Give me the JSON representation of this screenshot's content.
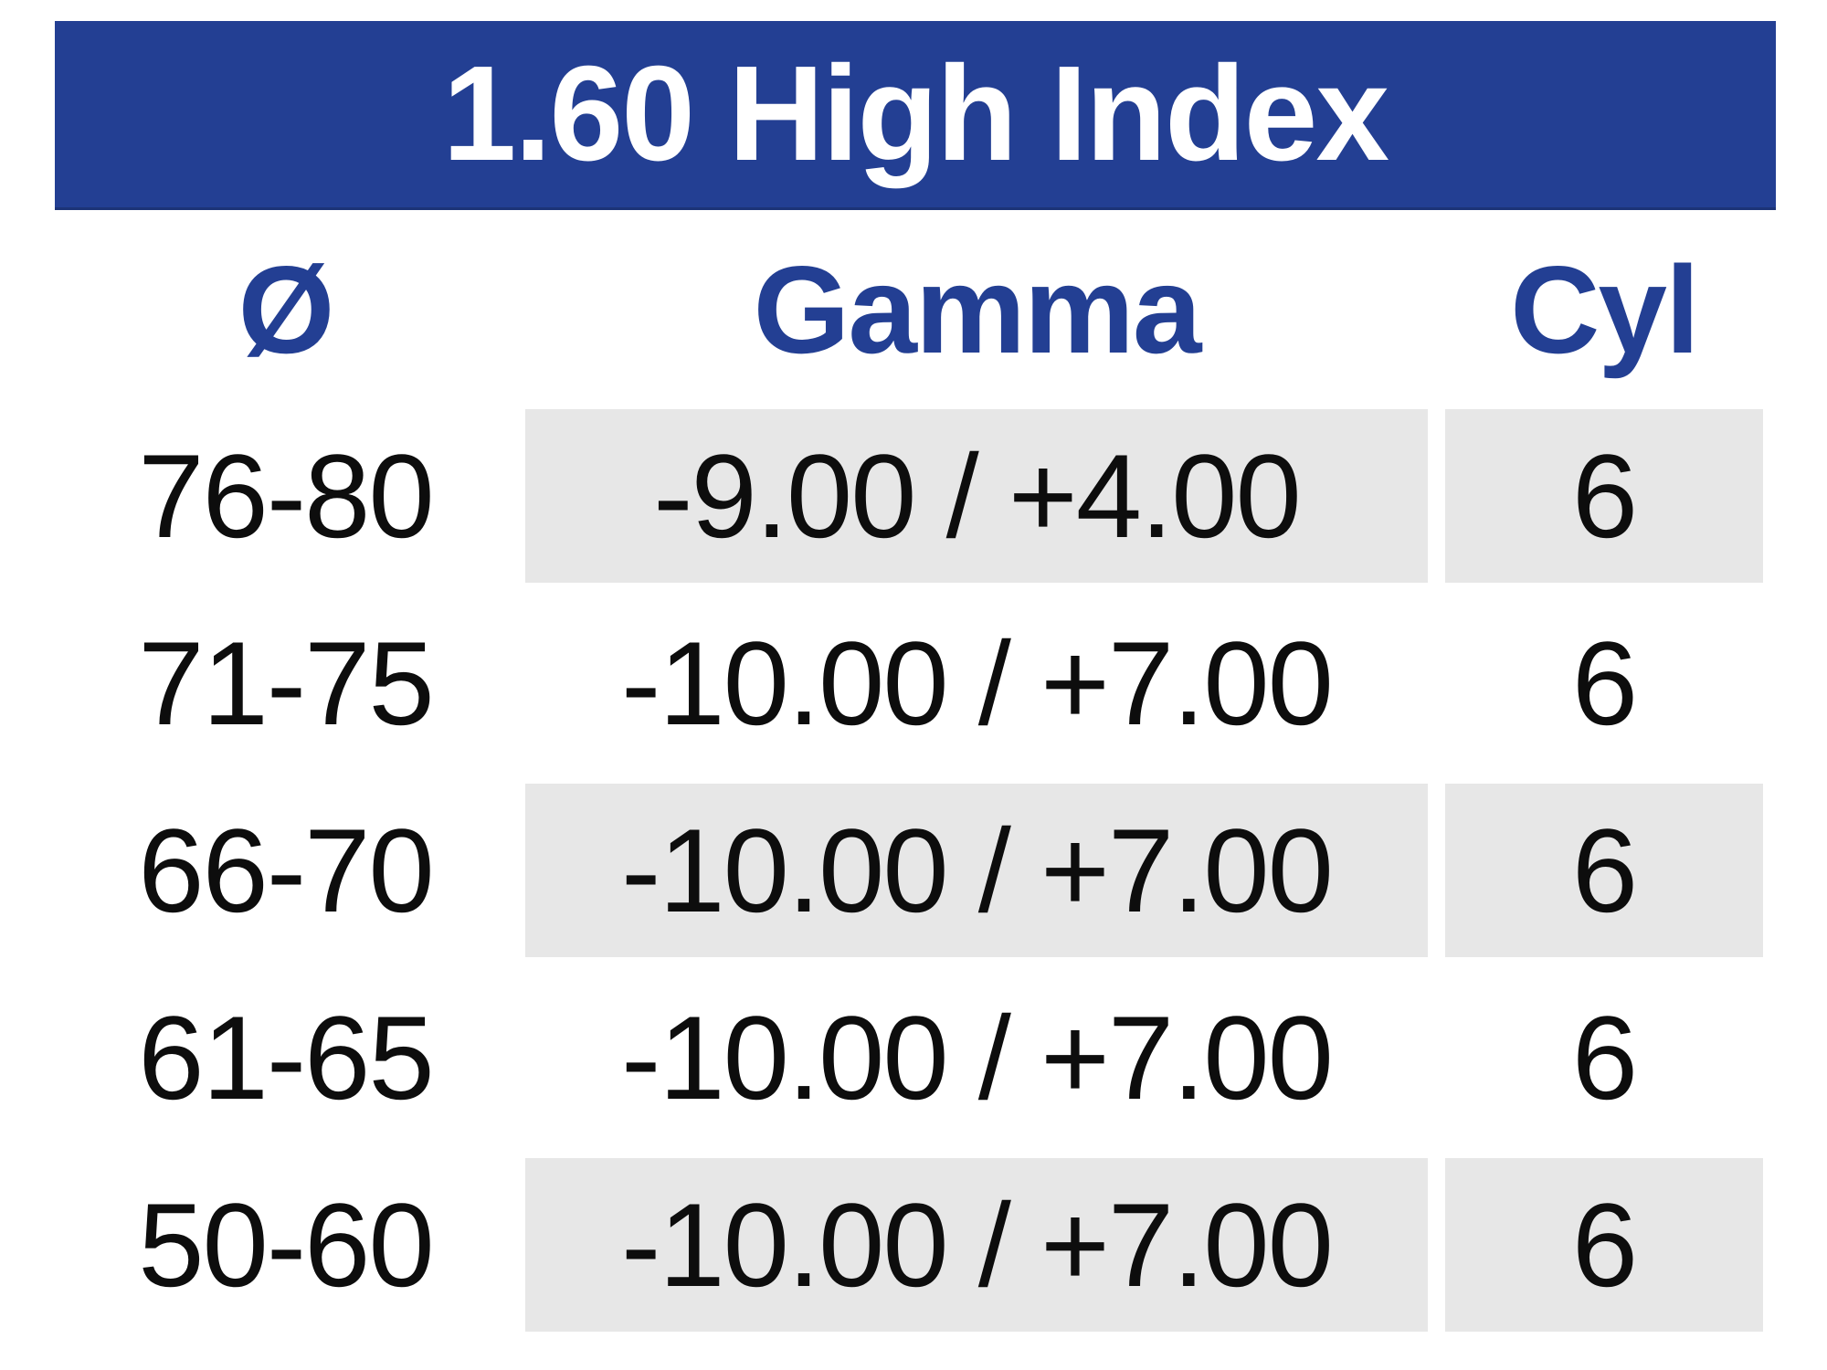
{
  "table": {
    "title": "1.60 High Index",
    "columns": [
      {
        "key": "diameter",
        "label": "Ø"
      },
      {
        "key": "gamma",
        "label": "Gamma"
      },
      {
        "key": "cyl",
        "label": "Cyl"
      }
    ],
    "rows": [
      {
        "diameter": "76-80",
        "gamma": "-9.00 / +4.00",
        "cyl": "6",
        "shaded": true
      },
      {
        "diameter": "71-75",
        "gamma": "-10.00 / +7.00",
        "cyl": "6",
        "shaded": false
      },
      {
        "diameter": "66-70",
        "gamma": "-10.00 / +7.00",
        "cyl": "6",
        "shaded": true
      },
      {
        "diameter": "61-65",
        "gamma": "-10.00 / +7.00",
        "cyl": "6",
        "shaded": false
      },
      {
        "diameter": "50-60",
        "gamma": "-10.00 / +7.00",
        "cyl": "6",
        "shaded": true
      }
    ],
    "colors": {
      "banner_blue": "#233f93",
      "header_text_blue": "#233f93",
      "row_shade_gray": "#e7e7e7",
      "title_text": "#ffffff",
      "data_text": "#0d0d0d"
    }
  }
}
